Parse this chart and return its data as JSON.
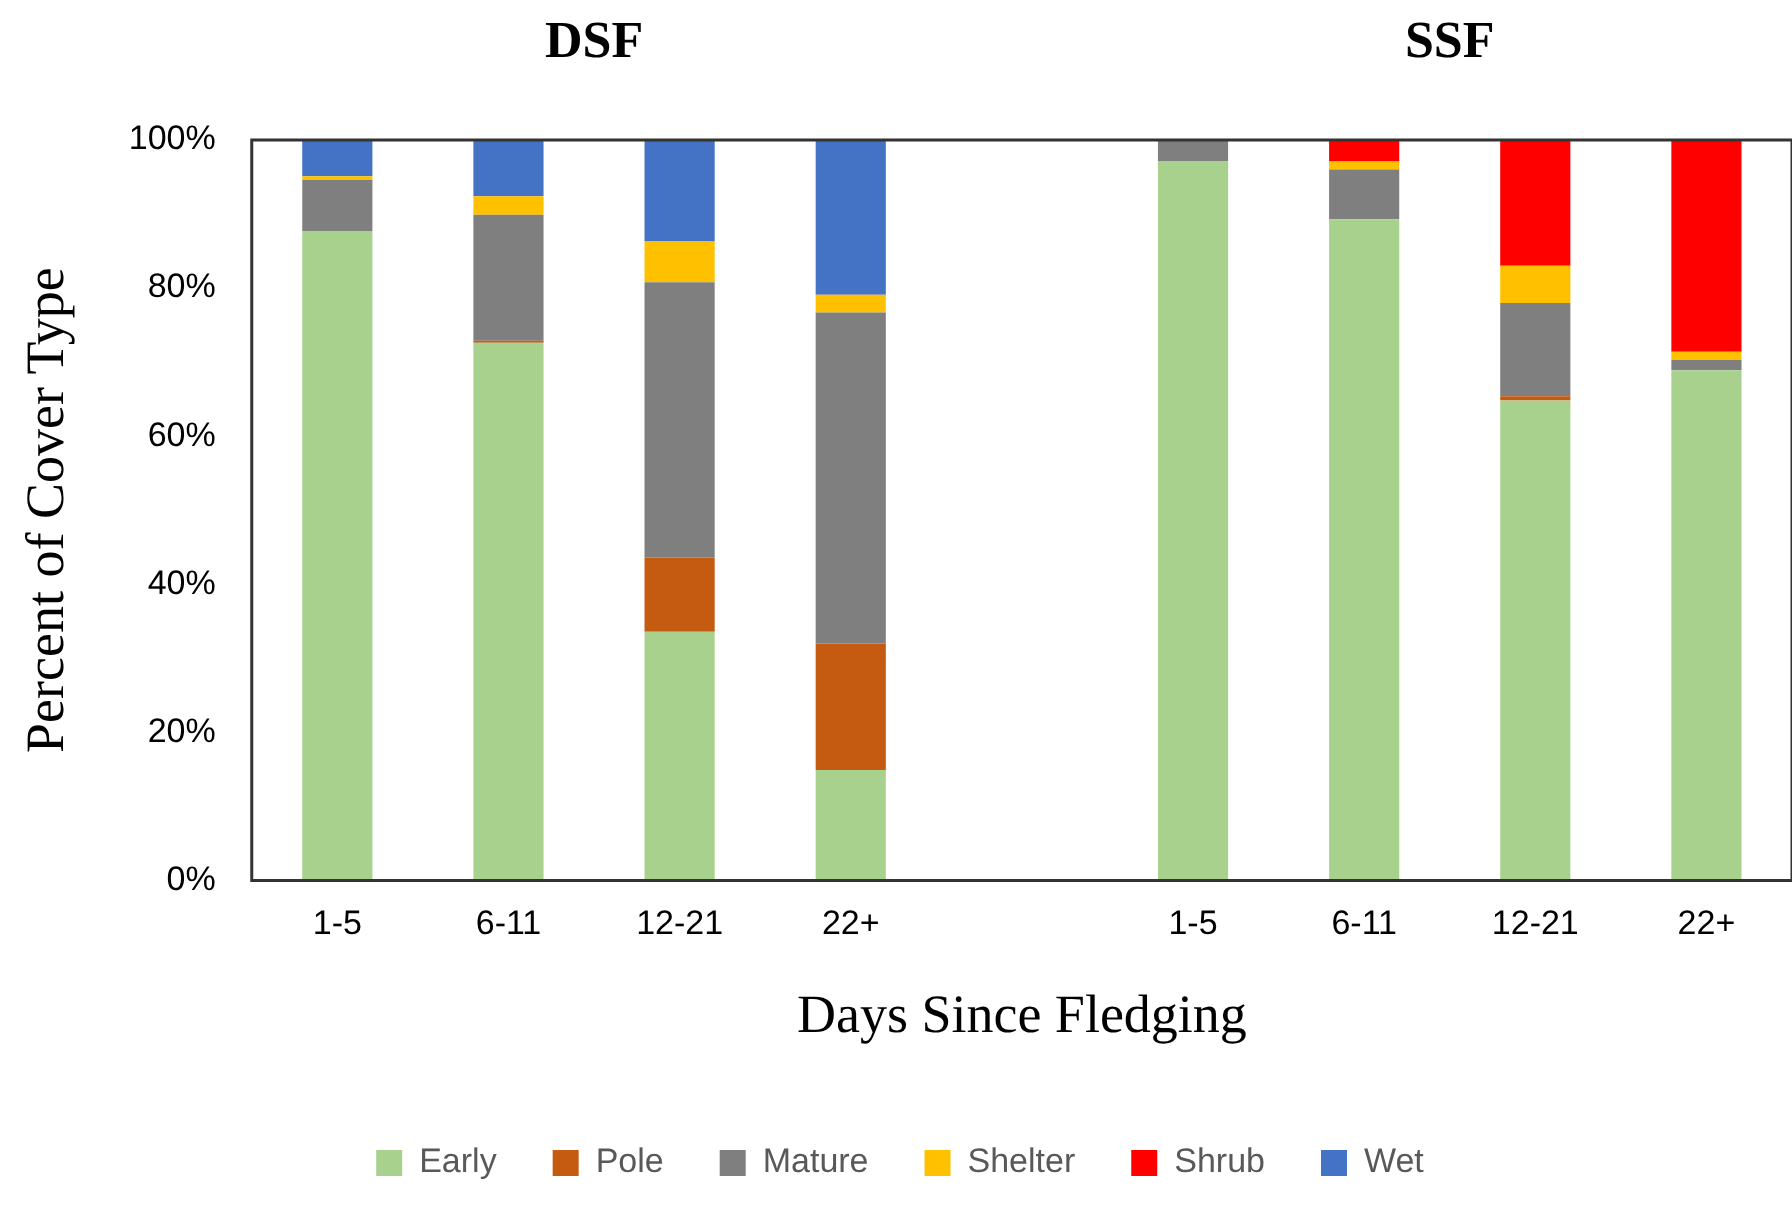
{
  "chart_data": {
    "type": "bar",
    "stacked": true,
    "annotations": [
      "DSF",
      "SSF"
    ],
    "xlabel": "Days Since Fledging",
    "ylabel": "Percent of Cover Type",
    "categories": [
      "1-5",
      "6-11",
      "12-21",
      "22+",
      null,
      "1-5",
      "6-11",
      "12-21",
      "22+"
    ],
    "series": [
      {
        "name": "Early",
        "color": "#a9d18e",
        "values": [
          87.7,
          72.6,
          33.6,
          14.9,
          null,
          97.1,
          89.3,
          64.8,
          68.9
        ]
      },
      {
        "name": "Pole",
        "color": "#c55a11",
        "values": [
          0,
          0.3,
          10.0,
          17.1,
          null,
          0,
          0,
          0.6,
          0
        ]
      },
      {
        "name": "Mature",
        "color": "#7f7f7f",
        "values": [
          6.9,
          17.0,
          37.2,
          44.7,
          null,
          2.9,
          6.7,
          12.6,
          1.4
        ]
      },
      {
        "name": "Shelter",
        "color": "#ffc000",
        "values": [
          0.5,
          2.5,
          5.5,
          2.4,
          null,
          0,
          1.1,
          5.0,
          1.1
        ]
      },
      {
        "name": "Shrub",
        "color": "#ff0000",
        "values": [
          0,
          0,
          0,
          0,
          null,
          0,
          2.9,
          17.0,
          28.6
        ]
      },
      {
        "name": "Wet",
        "color": "#4472c4",
        "values": [
          4.9,
          7.6,
          13.7,
          20.9,
          null,
          0,
          0,
          0,
          0
        ]
      }
    ],
    "ylim": [
      0,
      100
    ],
    "yticks": [
      {
        "value": 0,
        "label": "0%"
      },
      {
        "value": 20,
        "label": "20%"
      },
      {
        "value": 40,
        "label": "40%"
      },
      {
        "value": 60,
        "label": "60%"
      },
      {
        "value": 80,
        "label": "80%"
      },
      {
        "value": 100,
        "label": "100%"
      }
    ],
    "grid": false,
    "legend": "bottom"
  }
}
